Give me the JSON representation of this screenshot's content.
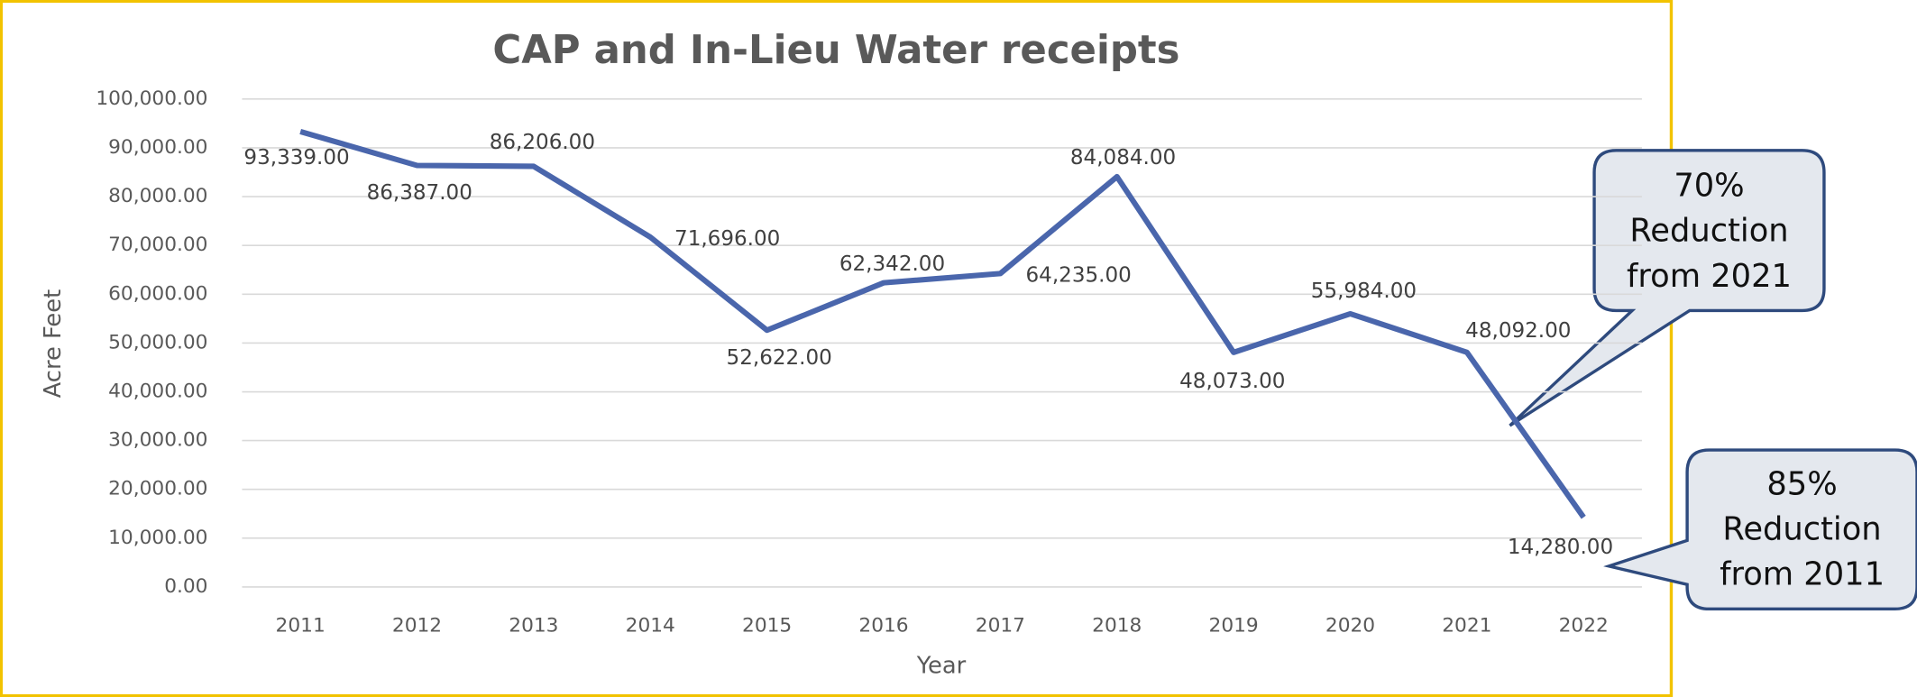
{
  "chart_data": {
    "type": "line",
    "title": "CAP and In-Lieu  Water receipts",
    "x_label": "Year",
    "y_label": "Acre Feet",
    "categories": [
      "2011",
      "2012",
      "2013",
      "2014",
      "2015",
      "2016",
      "2017",
      "2018",
      "2019",
      "2020",
      "2021",
      "2022"
    ],
    "series": [
      {
        "name": "Acre Feet",
        "color": "#4a66ac",
        "values": [
          93339,
          86387,
          86206,
          71696,
          52622,
          62342,
          64235,
          84084,
          48073,
          55984,
          48092,
          14280
        ],
        "value_labels": [
          "93,339.00",
          "86,387.00",
          "86,206.00",
          "71,696.00",
          "52,622.00",
          "62,342.00",
          "64,235.00",
          "84,084.00",
          "48,073.00",
          "55,984.00",
          "48,092.00",
          "14,280.00"
        ]
      }
    ],
    "ylim": [
      0,
      100000
    ],
    "yticks": [
      {
        "value": 0,
        "label": "0.00"
      },
      {
        "value": 10000,
        "label": "10,000.00"
      },
      {
        "value": 20000,
        "label": "20,000.00"
      },
      {
        "value": 30000,
        "label": "30,000.00"
      },
      {
        "value": 40000,
        "label": "40,000.00"
      },
      {
        "value": 50000,
        "label": "50,000.00"
      },
      {
        "value": 60000,
        "label": "60,000.00"
      },
      {
        "value": 70000,
        "label": "70,000.00"
      },
      {
        "value": 80000,
        "label": "80,000.00"
      },
      {
        "value": 90000,
        "label": "90,000.00"
      },
      {
        "value": 100000,
        "label": "100,000.00"
      }
    ],
    "grid": true,
    "annotations": [
      {
        "lines": [
          "70%",
          "Reduction",
          "from 2021"
        ]
      },
      {
        "lines": [
          "85%",
          "Reduction",
          "from 2011"
        ]
      }
    ]
  }
}
